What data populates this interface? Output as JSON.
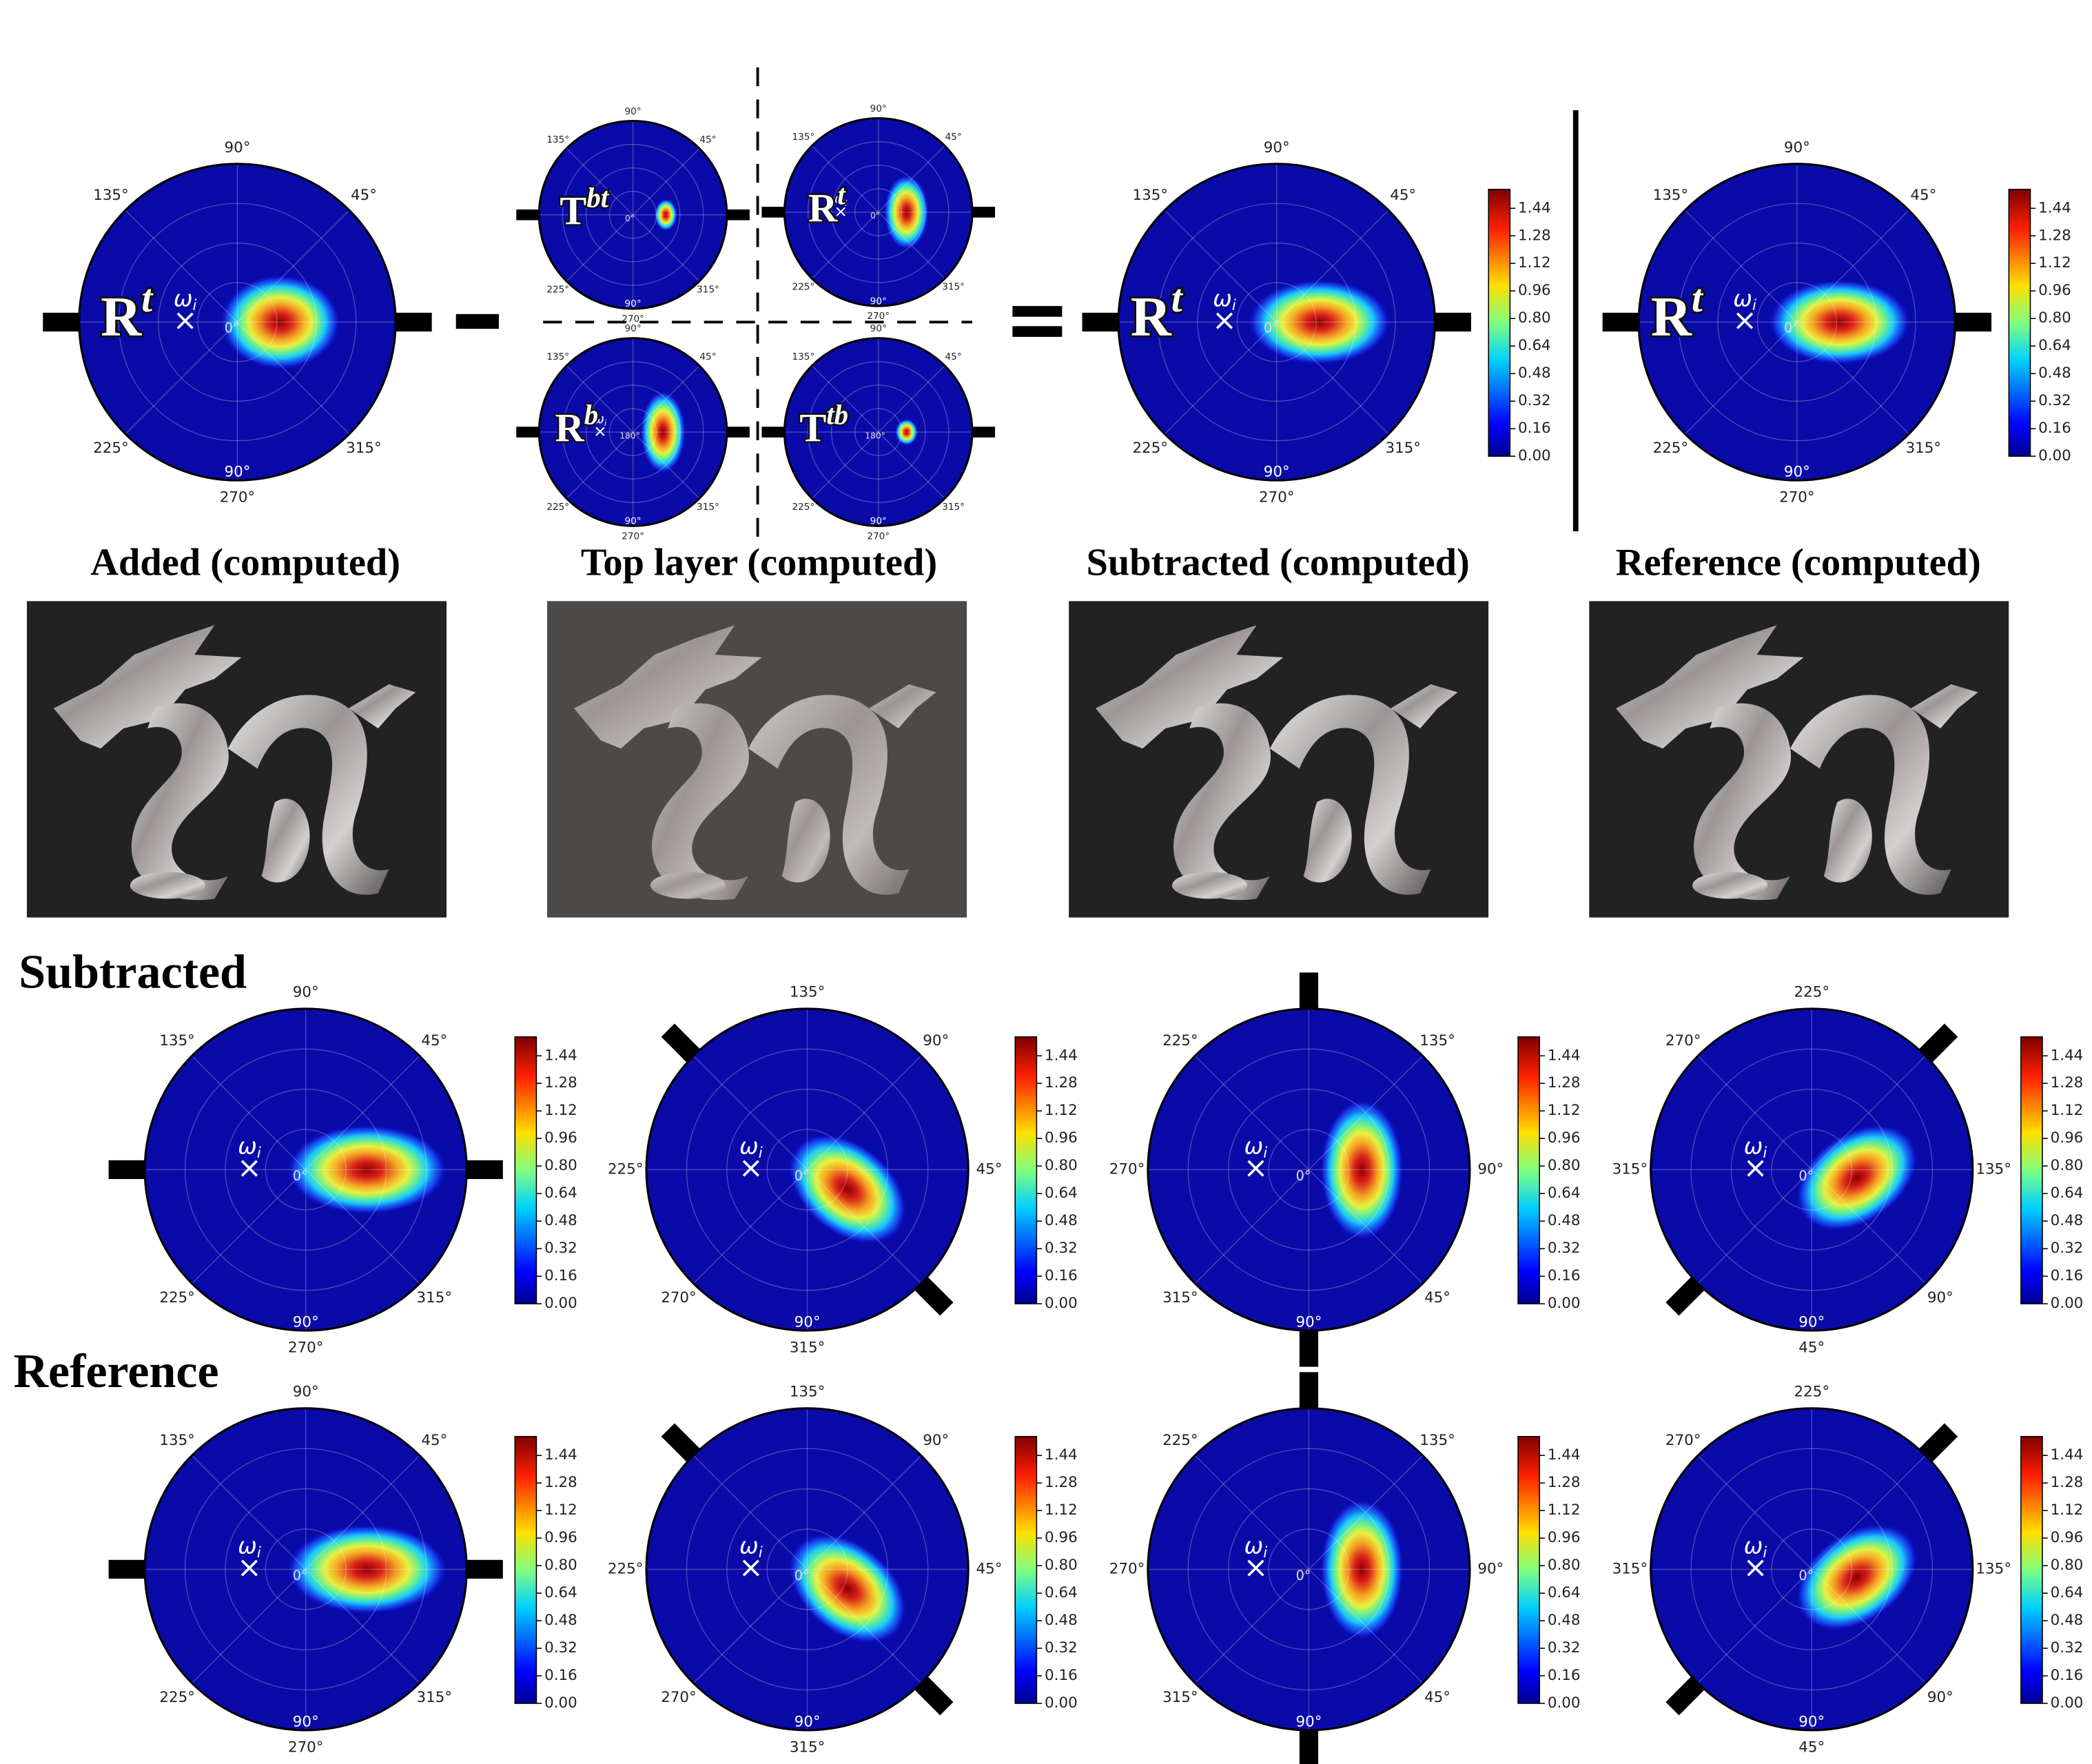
{
  "colorbar": {
    "lim": [
      0,
      1.55
    ],
    "ticks": [
      {
        "value": 0,
        "label": "0.00"
      },
      {
        "value": 0.16,
        "label": "0.16"
      },
      {
        "value": 0.32,
        "label": "0.32"
      },
      {
        "value": 0.48,
        "label": "0.48"
      },
      {
        "value": 0.64,
        "label": "0.64"
      },
      {
        "value": 0.8,
        "label": "0.80"
      },
      {
        "value": 0.96,
        "label": "0.96"
      },
      {
        "value": 1.12,
        "label": "1.12"
      },
      {
        "value": 1.28,
        "label": "1.28"
      },
      {
        "value": 1.44,
        "label": "1.44"
      }
    ]
  },
  "omega_label": {
    "base": "ω",
    "sub": "i"
  },
  "captions": [
    "Added (computed)",
    "Top layer (computed)",
    "Subtracted (computed)",
    "Reference (computed)"
  ],
  "row_labels": [
    "Subtracted",
    "Reference"
  ],
  "panels": [
    {
      "term": {
        "base": "R",
        "sup": "t"
      },
      "omega": true,
      "colorbar": false,
      "center_label": "0°",
      "labels": [
        {
          "text": "90°",
          "at": "top"
        },
        {
          "text": "45°",
          "at": "top-right"
        },
        {
          "text": "135°",
          "at": "top-left"
        },
        {
          "text": "225°",
          "at": "bottom-left"
        },
        {
          "text": "315°",
          "at": "bottom-right"
        },
        {
          "text": "90°",
          "at": "inner-bottom"
        },
        {
          "text": "270°",
          "at": "bottom"
        }
      ]
    },
    {
      "term": {
        "base": "T",
        "sup": "bt"
      },
      "omega": false,
      "colorbar": false,
      "center_label": "0°",
      "labels": [
        {
          "text": "90°",
          "at": "top"
        },
        {
          "text": "45°",
          "at": "top-right"
        },
        {
          "text": "135°",
          "at": "top-left"
        },
        {
          "text": "225°",
          "at": "bottom-left"
        },
        {
          "text": "315°",
          "at": "bottom-right"
        },
        {
          "text": "90°",
          "at": "inner-bottom"
        },
        {
          "text": "270°",
          "at": "bottom"
        }
      ]
    },
    {
      "term": {
        "base": "R",
        "sup": "t"
      },
      "omega": true,
      "colorbar": false,
      "center_label": "0°",
      "labels": [
        {
          "text": "90°",
          "at": "top"
        },
        {
          "text": "45°",
          "at": "top-right"
        },
        {
          "text": "135°",
          "at": "top-left"
        },
        {
          "text": "225°",
          "at": "bottom-left"
        },
        {
          "text": "315°",
          "at": "bottom-right"
        },
        {
          "text": "90°",
          "at": "inner-bottom"
        },
        {
          "text": "270°",
          "at": "bottom"
        }
      ]
    },
    {
      "term": {
        "base": "R",
        "sup": "b"
      },
      "omega": true,
      "colorbar": false,
      "center_label": "180°",
      "labels": [
        {
          "text": "90°",
          "at": "top"
        },
        {
          "text": "45°",
          "at": "top-right"
        },
        {
          "text": "135°",
          "at": "top-left"
        },
        {
          "text": "225°",
          "at": "bottom-left"
        },
        {
          "text": "315°",
          "at": "bottom-right"
        },
        {
          "text": "90°",
          "at": "inner-bottom"
        },
        {
          "text": "270°",
          "at": "bottom"
        }
      ]
    },
    {
      "term": {
        "base": "T",
        "sup": "tb"
      },
      "omega": false,
      "colorbar": false,
      "center_label": "180°",
      "labels": [
        {
          "text": "90°",
          "at": "top"
        },
        {
          "text": "45°",
          "at": "top-right"
        },
        {
          "text": "135°",
          "at": "top-left"
        },
        {
          "text": "225°",
          "at": "bottom-left"
        },
        {
          "text": "315°",
          "at": "bottom-right"
        },
        {
          "text": "90°",
          "at": "inner-bottom"
        },
        {
          "text": "270°",
          "at": "bottom"
        }
      ]
    },
    {
      "term": {
        "base": "R",
        "sup": "t"
      },
      "omega": true,
      "colorbar": true,
      "center_label": "0°",
      "labels": [
        {
          "text": "90°",
          "at": "top"
        },
        {
          "text": "45°",
          "at": "top-right"
        },
        {
          "text": "135°",
          "at": "top-left"
        },
        {
          "text": "225°",
          "at": "bottom-left"
        },
        {
          "text": "315°",
          "at": "bottom-right"
        },
        {
          "text": "90°",
          "at": "inner-bottom"
        },
        {
          "text": "270°",
          "at": "bottom"
        }
      ]
    },
    {
      "term": {
        "base": "R",
        "sup": "t"
      },
      "omega": true,
      "colorbar": true,
      "center_label": "0°",
      "labels": [
        {
          "text": "90°",
          "at": "top"
        },
        {
          "text": "45°",
          "at": "top-right"
        },
        {
          "text": "135°",
          "at": "top-left"
        },
        {
          "text": "225°",
          "at": "bottom-left"
        },
        {
          "text": "315°",
          "at": "bottom-right"
        },
        {
          "text": "90°",
          "at": "inner-bottom"
        },
        {
          "text": "270°",
          "at": "bottom"
        }
      ]
    },
    {
      "omega": true,
      "colorbar": true,
      "center_label": "0°",
      "labels": [
        {
          "text": "90°",
          "at": "top"
        },
        {
          "text": "45°",
          "at": "top-right"
        },
        {
          "text": "135°",
          "at": "top-left"
        },
        {
          "text": "225°",
          "at": "bottom-left"
        },
        {
          "text": "315°",
          "at": "bottom-right"
        },
        {
          "text": "90°",
          "at": "inner-bottom"
        },
        {
          "text": "270°",
          "at": "bottom"
        }
      ]
    },
    {
      "omega": true,
      "colorbar": true,
      "center_label": "0°",
      "labels": [
        {
          "text": "135°",
          "at": "top"
        },
        {
          "text": "90°",
          "at": "top-right"
        },
        {
          "text": "225°",
          "at": "left"
        },
        {
          "text": "45°",
          "at": "right"
        },
        {
          "text": "270°",
          "at": "bottom-left"
        },
        {
          "text": "90°",
          "at": "inner-bottom"
        },
        {
          "text": "315°",
          "at": "bottom"
        }
      ]
    },
    {
      "omega": true,
      "colorbar": true,
      "center_label": "0°",
      "labels": [
        {
          "text": "225°",
          "at": "top-left"
        },
        {
          "text": "135°",
          "at": "top-right"
        },
        {
          "text": "270°",
          "at": "left"
        },
        {
          "text": "90°",
          "at": "right"
        },
        {
          "text": "315°",
          "at": "bottom-left"
        },
        {
          "text": "45°",
          "at": "bottom-right"
        },
        {
          "text": "90°",
          "at": "inner-bottom"
        }
      ]
    },
    {
      "omega": true,
      "colorbar": true,
      "center_label": "0°",
      "labels": [
        {
          "text": "225°",
          "at": "top"
        },
        {
          "text": "270°",
          "at": "top-left"
        },
        {
          "text": "315°",
          "at": "left"
        },
        {
          "text": "135°",
          "at": "right"
        },
        {
          "text": "90°",
          "at": "bottom-right"
        },
        {
          "text": "90°",
          "at": "inner-bottom"
        },
        {
          "text": "45°",
          "at": "bottom"
        }
      ]
    },
    {
      "omega": true,
      "colorbar": true,
      "center_label": "0°",
      "labels": [
        {
          "text": "90°",
          "at": "top"
        },
        {
          "text": "45°",
          "at": "top-right"
        },
        {
          "text": "135°",
          "at": "top-left"
        },
        {
          "text": "225°",
          "at": "bottom-left"
        },
        {
          "text": "315°",
          "at": "bottom-right"
        },
        {
          "text": "90°",
          "at": "inner-bottom"
        },
        {
          "text": "270°",
          "at": "bottom"
        }
      ]
    },
    {
      "omega": true,
      "colorbar": true,
      "center_label": "0°",
      "labels": [
        {
          "text": "135°",
          "at": "top"
        },
        {
          "text": "90°",
          "at": "top-right"
        },
        {
          "text": "225°",
          "at": "left"
        },
        {
          "text": "45°",
          "at": "right"
        },
        {
          "text": "270°",
          "at": "bottom-left"
        },
        {
          "text": "90°",
          "at": "inner-bottom"
        },
        {
          "text": "315°",
          "at": "bottom"
        }
      ]
    },
    {
      "omega": true,
      "colorbar": true,
      "center_label": "0°",
      "labels": [
        {
          "text": "225°",
          "at": "top-left"
        },
        {
          "text": "135°",
          "at": "top-right"
        },
        {
          "text": "270°",
          "at": "left"
        },
        {
          "text": "90°",
          "at": "right"
        },
        {
          "text": "315°",
          "at": "bottom-left"
        },
        {
          "text": "45°",
          "at": "bottom-right"
        },
        {
          "text": "90°",
          "at": "inner-bottom"
        }
      ]
    },
    {
      "omega": true,
      "colorbar": true,
      "center_label": "0°",
      "labels": [
        {
          "text": "225°",
          "at": "top"
        },
        {
          "text": "270°",
          "at": "top-left"
        },
        {
          "text": "315°",
          "at": "left"
        },
        {
          "text": "135°",
          "at": "right"
        },
        {
          "text": "90°",
          "at": "bottom-right"
        },
        {
          "text": "90°",
          "at": "inner-bottom"
        },
        {
          "text": "45°",
          "at": "bottom"
        }
      ]
    }
  ]
}
